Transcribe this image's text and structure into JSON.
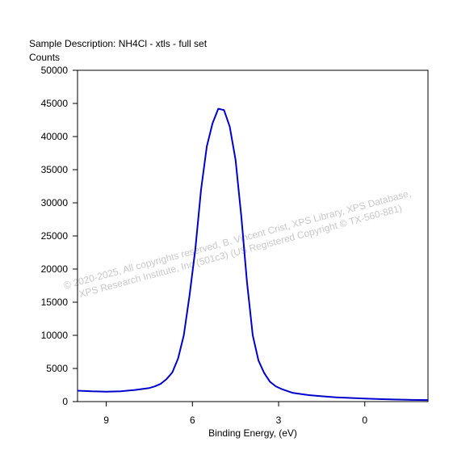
{
  "chart_data": {
    "type": "line",
    "title": "Sample Description:  NH4Cl - xtls - full set",
    "ylabel": "Counts",
    "xlabel": "Binding Energy, (eV)",
    "x_reversed": true,
    "xlim": [
      10.0,
      -2.2
    ],
    "ylim": [
      0,
      50000
    ],
    "xticks": [
      9,
      6,
      3,
      0
    ],
    "yticks": [
      0,
      5000,
      10000,
      15000,
      20000,
      25000,
      30000,
      35000,
      40000,
      45000,
      50000
    ],
    "grid": false,
    "line_color": "#0000cc",
    "series": [
      {
        "x": [
          10.0,
          9.5,
          9.0,
          8.5,
          8.0,
          7.5,
          7.3,
          7.1,
          6.9,
          6.7,
          6.5,
          6.3,
          6.1,
          5.9,
          5.7,
          5.5,
          5.3,
          5.1,
          4.9,
          4.7,
          4.5,
          4.3,
          4.1,
          3.9,
          3.7,
          3.5,
          3.3,
          3.1,
          2.9,
          2.5,
          2.0,
          1.5,
          1.0,
          0.5,
          0.0,
          -0.5,
          -1.0,
          -1.5,
          -2.2
        ],
        "y": [
          1650,
          1550,
          1500,
          1550,
          1750,
          2050,
          2300,
          2700,
          3400,
          4400,
          6500,
          10000,
          16000,
          23000,
          32000,
          38500,
          42000,
          44200,
          44000,
          41500,
          36500,
          28000,
          18000,
          10000,
          6200,
          4300,
          3000,
          2300,
          1900,
          1300,
          1000,
          800,
          650,
          550,
          450,
          380,
          320,
          270,
          230
        ]
      }
    ]
  },
  "watermark": {
    "line1": "© 2020-2025,  All copyrights reserved,    B. Vincent Crist,  XPS Library, XPS Database,",
    "line2": "XPS Research Institute, Inc (501c3)    (US Registered Copyright © TX-560-881)"
  }
}
